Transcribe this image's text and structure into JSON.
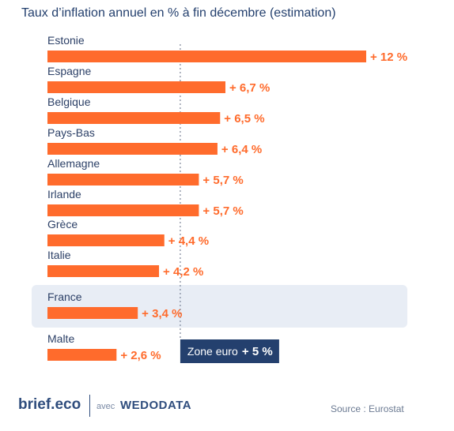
{
  "chart_data": {
    "type": "bar",
    "orientation": "horizontal",
    "title": "Taux d’inflation annuel en % à fin décembre (estimation)",
    "categories": [
      "Estonie",
      "Espagne",
      "Belgique",
      "Pays-Bas",
      "Allemagne",
      "Irlande",
      "Grèce",
      "Italie",
      "France",
      "Malte"
    ],
    "values": [
      12,
      6.7,
      6.5,
      6.4,
      5.7,
      5.7,
      4.4,
      4.2,
      3.4,
      2.6
    ],
    "value_labels": [
      "+ 12 %",
      "+ 6,7 %",
      "+ 6,5 %",
      "+ 6,4 %",
      "+ 5,7 %",
      "+ 5,7 %",
      "+ 4,4 %",
      "+ 4,2 %",
      "+ 3,4 %",
      "+ 2,6 %"
    ],
    "highlighted_category": "France",
    "reference_line": {
      "value": 5,
      "label": "Zone euro",
      "value_label": "+ 5 %"
    },
    "xlim": [
      0,
      12
    ],
    "grid": false,
    "colors": {
      "bar": "#ff6b2c",
      "value_text": "#ff6b2c",
      "label_text": "#2b3f66",
      "highlight_bg": "#e8edf5",
      "reference_box": "#24406e",
      "reference_line": "#7d8699"
    }
  },
  "footer": {
    "brand": "brief.eco",
    "avec": "avec",
    "partner": "WEDODATA",
    "source": "Source : Eurostat"
  }
}
